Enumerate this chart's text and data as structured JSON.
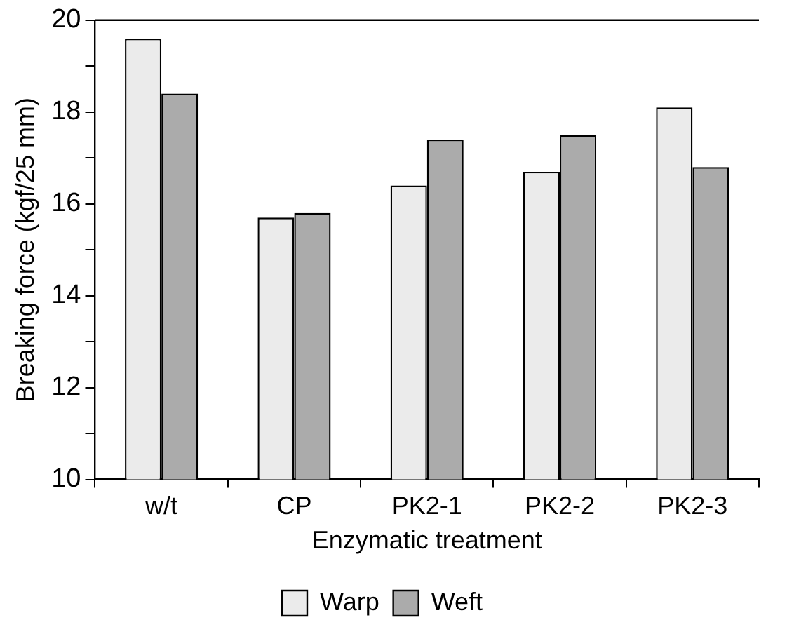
{
  "chart_data": {
    "type": "bar",
    "xlabel": "Enzymatic treatment",
    "ylabel": "Breaking force (kgf/25 mm)",
    "categories": [
      "w/t",
      "CP",
      "PK2-1",
      "PK2-2",
      "PK2-3"
    ],
    "series": [
      {
        "name": "Warp",
        "color": "#ebebeb",
        "values": [
          19.6,
          15.7,
          16.4,
          16.7,
          18.1
        ]
      },
      {
        "name": "Weft",
        "color": "#ababab",
        "values": [
          18.4,
          15.8,
          17.4,
          17.5,
          16.8
        ]
      }
    ],
    "ylim": [
      10,
      20
    ],
    "yticks": [
      10,
      {
        "value": 11,
        "label": null
      },
      12,
      {
        "value": 13,
        "label": null
      },
      14,
      {
        "value": 15,
        "label": null
      },
      16,
      {
        "value": 17,
        "label": null
      },
      18,
      {
        "value": 19,
        "label": null
      },
      20
    ],
    "grid": false,
    "legend": "bottom"
  }
}
